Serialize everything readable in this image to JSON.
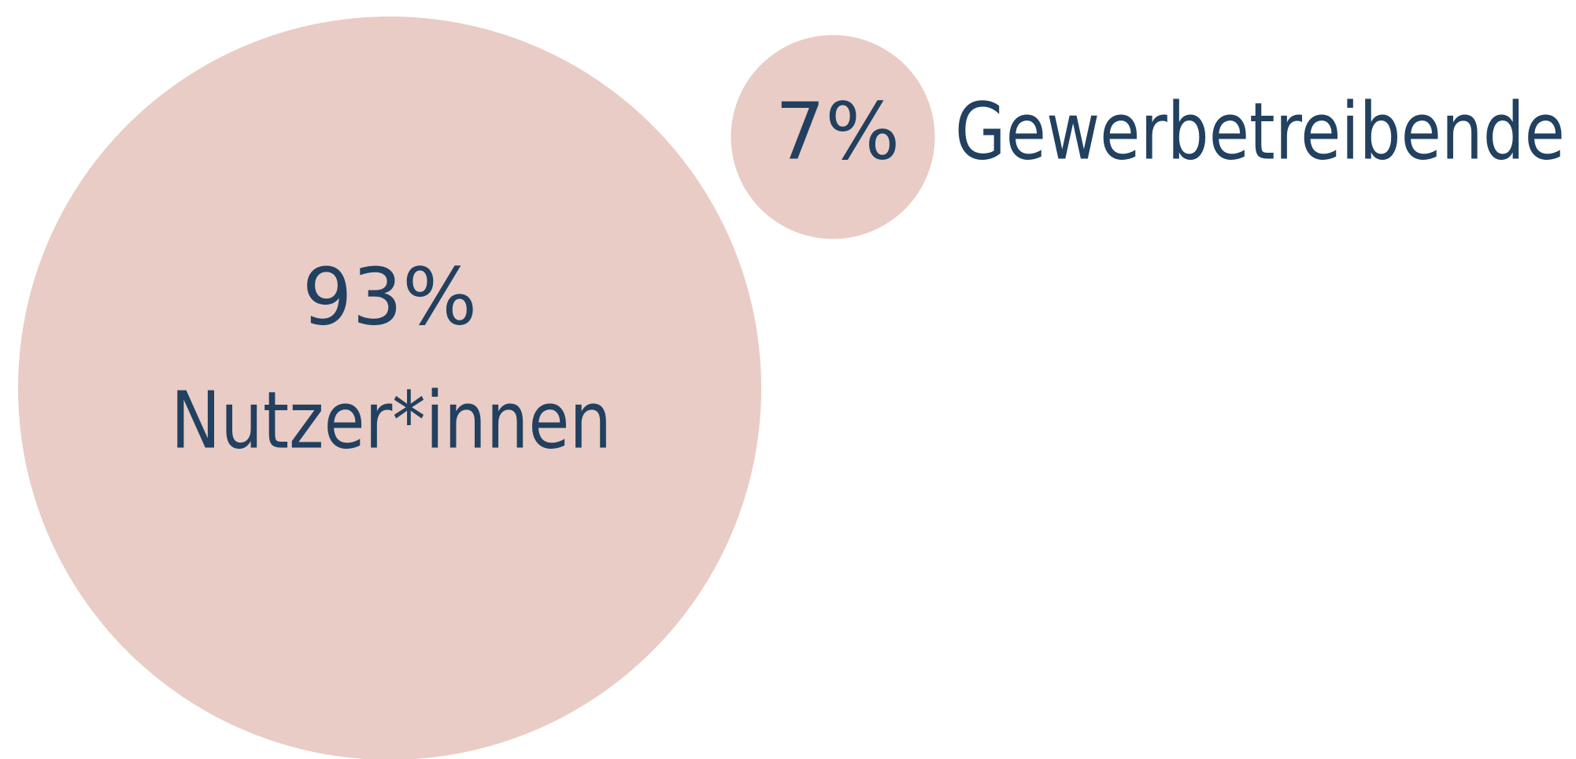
{
  "chart_data": {
    "type": "bubble",
    "categories": [
      "Nutzer*innen",
      "Gewerbetreibende"
    ],
    "values": [
      93,
      7
    ],
    "value_labels": [
      "93%",
      "7%"
    ],
    "color": "#e9ccc5"
  }
}
